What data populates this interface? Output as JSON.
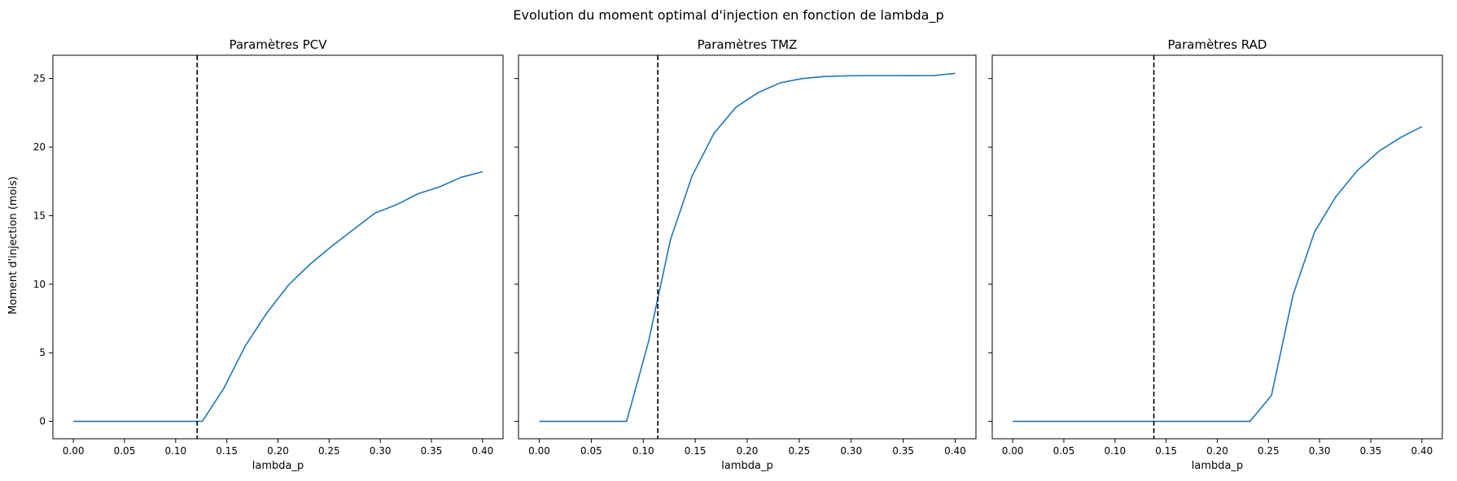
{
  "figure": {
    "suptitle": "Evolution du moment optimal d'injection en fonction de lambda_p",
    "ylabel": "Moment d'injection (mois)"
  },
  "colors": {
    "line": "#1f77b4",
    "vline": "#000000",
    "axes": "#000000"
  },
  "chart_data": [
    {
      "type": "line",
      "title": "Paramètres PCV",
      "xlabel": "lambda_p",
      "ylabel": "Moment d'injection (mois)",
      "xlim": [
        -0.02,
        0.42
      ],
      "ylim": [
        -1.27,
        26.7
      ],
      "xticks": [
        0.0,
        0.05,
        0.1,
        0.15,
        0.2,
        0.25,
        0.3,
        0.35,
        0.4
      ],
      "xtick_labels": [
        "0.00",
        "0.05",
        "0.10",
        "0.15",
        "0.20",
        "0.25",
        "0.30",
        "0.35",
        "0.40"
      ],
      "yticks": [
        0,
        5,
        10,
        15,
        20,
        25
      ],
      "ytick_labels": [
        "0",
        "5",
        "10",
        "15",
        "20",
        "25"
      ],
      "vline_x": 0.121,
      "x": [
        0.0,
        0.021,
        0.042,
        0.063,
        0.084,
        0.105,
        0.126,
        0.147,
        0.168,
        0.189,
        0.211,
        0.232,
        0.253,
        0.274,
        0.295,
        0.316,
        0.337,
        0.358,
        0.379,
        0.4
      ],
      "values": [
        0,
        0,
        0,
        0,
        0,
        0,
        0,
        2.4,
        5.5,
        7.9,
        10.0,
        11.5,
        12.8,
        14.0,
        15.2,
        15.8,
        16.6,
        17.1,
        17.8,
        18.2
      ],
      "grid": false
    },
    {
      "type": "line",
      "title": "Paramètres TMZ",
      "xlabel": "lambda_p",
      "xlim": [
        -0.02,
        0.42
      ],
      "ylim": [
        -1.27,
        26.7
      ],
      "xticks": [
        0.0,
        0.05,
        0.1,
        0.15,
        0.2,
        0.25,
        0.3,
        0.35,
        0.4
      ],
      "xtick_labels": [
        "0.00",
        "0.05",
        "0.10",
        "0.15",
        "0.20",
        "0.25",
        "0.30",
        "0.35",
        "0.40"
      ],
      "yticks": [
        0,
        5,
        10,
        15,
        20,
        25
      ],
      "vline_x": 0.114,
      "x": [
        0.0,
        0.021,
        0.042,
        0.063,
        0.084,
        0.105,
        0.126,
        0.147,
        0.168,
        0.189,
        0.211,
        0.232,
        0.253,
        0.274,
        0.295,
        0.316,
        0.337,
        0.358,
        0.379,
        0.4
      ],
      "values": [
        0,
        0,
        0,
        0,
        0,
        5.8,
        13.2,
        17.9,
        21.0,
        22.9,
        24.0,
        24.7,
        25.0,
        25.15,
        25.2,
        25.22,
        25.22,
        25.21,
        25.22,
        25.38
      ],
      "grid": false
    },
    {
      "type": "line",
      "title": "Paramètres RAD",
      "xlabel": "lambda_p",
      "xlim": [
        -0.02,
        0.42
      ],
      "ylim": [
        -1.27,
        26.7
      ],
      "xticks": [
        0.0,
        0.05,
        0.1,
        0.15,
        0.2,
        0.25,
        0.3,
        0.35,
        0.4
      ],
      "xtick_labels": [
        "0.00",
        "0.05",
        "0.10",
        "0.15",
        "0.20",
        "0.25",
        "0.30",
        "0.35",
        "0.40"
      ],
      "yticks": [
        0,
        5,
        10,
        15,
        20,
        25
      ],
      "vline_x": 0.138,
      "x": [
        0.0,
        0.021,
        0.042,
        0.063,
        0.084,
        0.105,
        0.126,
        0.147,
        0.168,
        0.189,
        0.211,
        0.232,
        0.253,
        0.274,
        0.295,
        0.316,
        0.337,
        0.358,
        0.379,
        0.4
      ],
      "values": [
        0,
        0,
        0,
        0,
        0,
        0,
        0,
        0,
        0,
        0,
        0,
        0,
        1.9,
        9.2,
        13.8,
        16.4,
        18.3,
        19.7,
        20.7,
        21.5
      ],
      "grid": false
    }
  ]
}
